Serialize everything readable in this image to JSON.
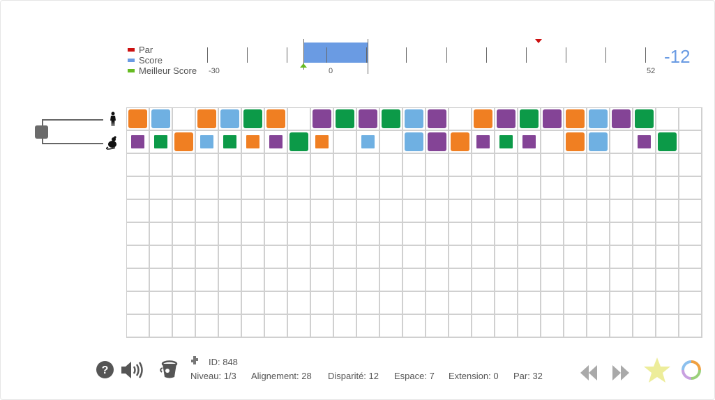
{
  "colors": {
    "orange": "#f07f22",
    "light_blue": "#6fb0e2",
    "green": "#0c9a48",
    "purple": "#844496",
    "par": "#cc1111",
    "score": "#6a9be3",
    "best": "#66bb22"
  },
  "legend": {
    "par": "Par",
    "score": "Score",
    "best": "Meilleur Score"
  },
  "scale": {
    "min_label": "-30",
    "zero_label": "0",
    "max_label": "52",
    "min": -30,
    "max": 52,
    "score": -12,
    "best": -12,
    "par": 32
  },
  "score_display": "-12",
  "sequences": {
    "row1_icon": "human-icon",
    "row2_icon": "mouse-icon",
    "row1": [
      "O",
      "L",
      "",
      "O",
      "L",
      "G",
      "O",
      "",
      "P",
      "G",
      "P",
      "G",
      "L",
      "P",
      "",
      "O",
      "P",
      "G",
      "P",
      "O",
      "L",
      "P",
      "G",
      "",
      ""
    ],
    "row2": [
      "p",
      "g",
      "O",
      "l",
      "g",
      "o",
      "p",
      "G",
      "o",
      "",
      "l",
      "",
      "L",
      "P",
      "O",
      "p",
      "g",
      "p",
      "",
      "O",
      "L",
      "",
      "p",
      "G",
      ""
    ]
  },
  "grid": {
    "rows": 10,
    "cols": 25
  },
  "toolbar": {
    "help_icon": "question-circle-icon",
    "sound_icon": "speaker-icon",
    "bucket_icon": "bucket-icon",
    "puzzle_icon": "puzzle-piece-icon",
    "prev_icon": "rewind-icon",
    "next_icon": "fast-forward-icon",
    "star_icon": "star-icon",
    "reset_icon": "reset-circle-icon"
  },
  "info": {
    "id": "ID:  848",
    "level": "Niveau: 1/3",
    "alignment": "Alignement: 28",
    "disparity": "Disparité: 12",
    "space": "Espace: 7",
    "extension": "Extension: 0",
    "par": "Par: 32"
  }
}
